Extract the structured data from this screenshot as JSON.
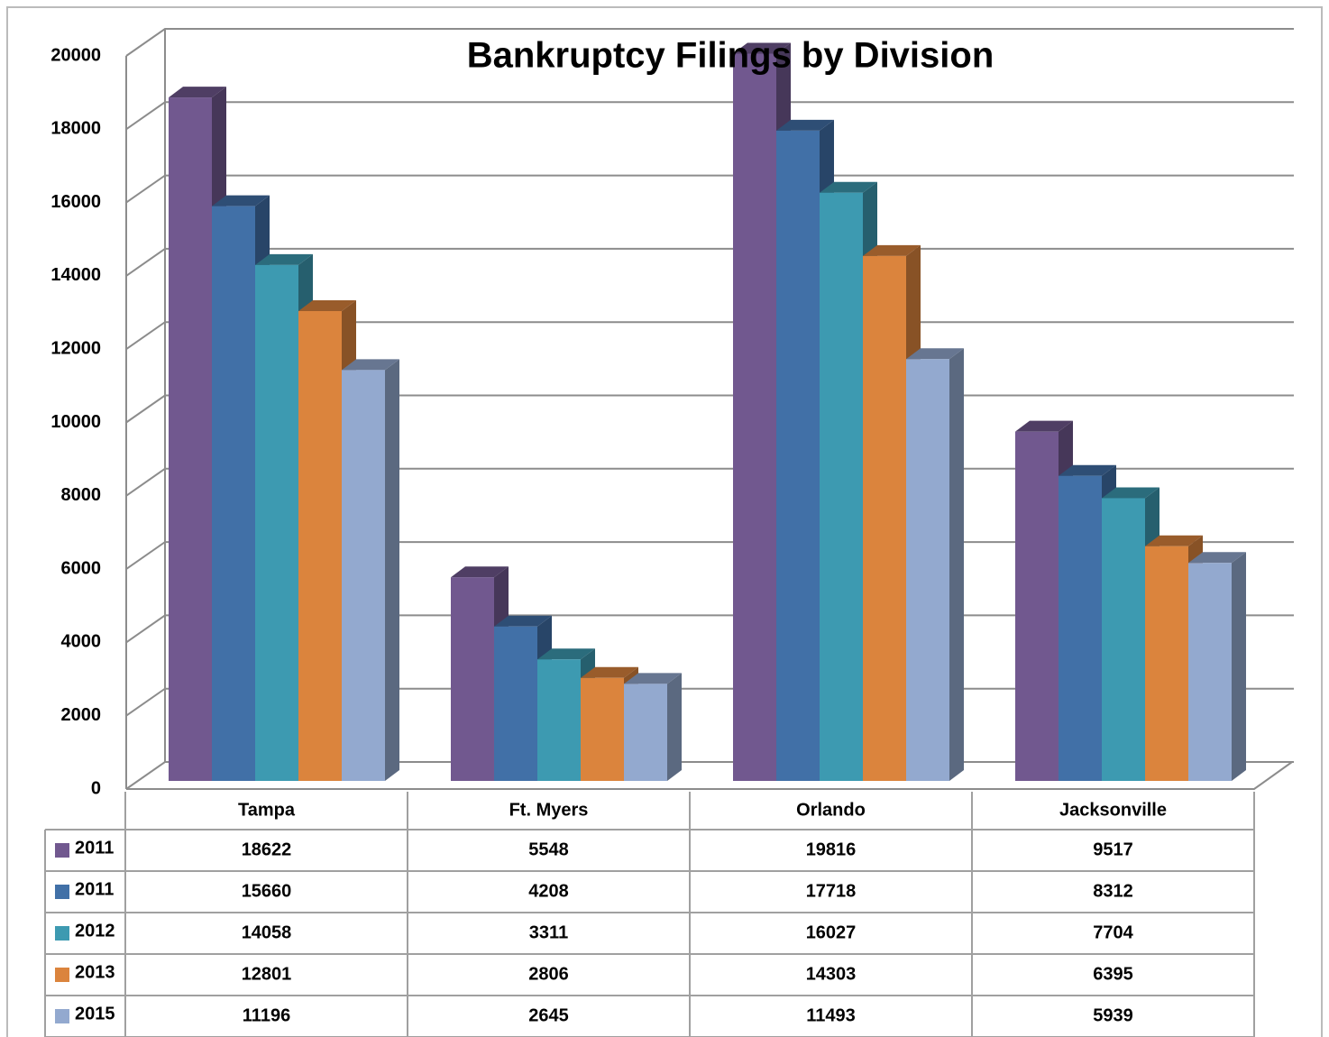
{
  "chart_data": {
    "type": "bar3d",
    "title": "Bankruptcy Filings by Division",
    "categories": [
      "Tampa",
      "Ft. Myers",
      "Orlando",
      "Jacksonville"
    ],
    "series": [
      {
        "name": "2011",
        "color": "#71588f",
        "values": [
          18622,
          5548,
          19816,
          9517
        ]
      },
      {
        "name": "2011",
        "color": "#4170a7",
        "values": [
          15660,
          4208,
          17718,
          8312
        ]
      },
      {
        "name": "2012",
        "color": "#3d9ab1",
        "values": [
          14058,
          3311,
          16027,
          7704
        ]
      },
      {
        "name": "2013",
        "color": "#db843d",
        "values": [
          12801,
          2806,
          14303,
          6395
        ]
      },
      {
        "name": "2015",
        "color": "#93a9cf",
        "values": [
          11196,
          2645,
          11493,
          5939
        ]
      }
    ],
    "ylim": [
      0,
      20000
    ],
    "yticks": [
      0,
      2000,
      4000,
      6000,
      8000,
      10000,
      12000,
      14000,
      16000,
      18000,
      20000
    ],
    "grid": true,
    "data_table": true
  }
}
